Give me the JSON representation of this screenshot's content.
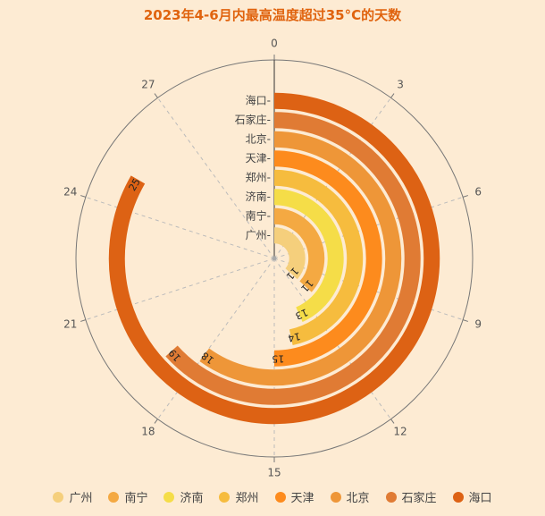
{
  "title": "2023年4-6月内最高温度超过35°C的天数",
  "chart_data": {
    "type": "bar",
    "polar": true,
    "categories": [
      "广州",
      "南宁",
      "济南",
      "郑州",
      "天津",
      "北京",
      "石家庄",
      "海口"
    ],
    "values": [
      11,
      11,
      13,
      14,
      15,
      18,
      19,
      25
    ],
    "angle_axis": {
      "min": 0,
      "max": 30,
      "ticks": [
        "0",
        "3",
        "6",
        "9",
        "12",
        "15",
        "18",
        "21",
        "24",
        "27"
      ]
    },
    "colors": [
      "#F5CF7C",
      "#F4A942",
      "#F5DD48",
      "#F6BC3E",
      "#FD8B1D",
      "#EE9638",
      "#E07B34",
      "#DD6214"
    ],
    "legend": {
      "position": "bottom"
    }
  }
}
